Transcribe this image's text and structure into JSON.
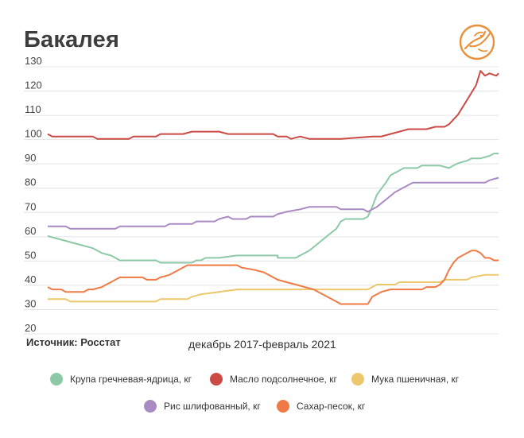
{
  "title": "Бакалея",
  "source": "Источник: Росстат",
  "period": "декабрь 2017-февраль 2021",
  "logo_icon": "bird-logo-icon",
  "chart_data": {
    "type": "line",
    "title": "Бакалея",
    "xlabel": "декабрь 2017-февраль 2021",
    "ylabel": "",
    "ylim": [
      20,
      130
    ],
    "yticks": [
      20,
      30,
      40,
      50,
      60,
      70,
      80,
      90,
      100,
      110,
      120,
      130
    ],
    "grid": true,
    "legend_position": "bottom",
    "x_start": "2017-12",
    "x_end": "2021-02",
    "n_points": 180,
    "series": [
      {
        "name": "Крупа гречневая-ядрица, кг",
        "color": "#8dc9a6",
        "values": [
          58,
          57,
          56,
          55,
          54,
          53,
          52,
          51,
          50,
          49,
          48,
          48,
          48,
          47,
          47,
          47,
          48,
          48,
          49,
          49,
          49,
          50,
          50,
          50,
          50,
          49,
          49,
          49,
          50,
          52,
          55,
          58,
          61,
          64,
          65,
          65,
          66,
          70,
          75,
          80,
          83,
          85,
          86,
          86,
          87,
          87,
          87,
          86,
          87,
          88,
          89,
          90,
          90,
          91,
          92,
          92
        ],
        "at": [
          0,
          0.02,
          0.04,
          0.06,
          0.08,
          0.1,
          0.11,
          0.12,
          0.14,
          0.15,
          0.16,
          0.2,
          0.24,
          0.25,
          0.3,
          0.32,
          0.33,
          0.34,
          0.35,
          0.37,
          0.38,
          0.42,
          0.46,
          0.5,
          0.51,
          0.51,
          0.53,
          0.55,
          0.56,
          0.58,
          0.6,
          0.62,
          0.64,
          0.65,
          0.66,
          0.7,
          0.71,
          0.72,
          0.73,
          0.75,
          0.76,
          0.78,
          0.79,
          0.82,
          0.83,
          0.86,
          0.87,
          0.89,
          0.9,
          0.91,
          0.93,
          0.94,
          0.96,
          0.98,
          0.99,
          1
        ]
      },
      {
        "name": "Масло подсолнечное, кг",
        "color": "#cc4a44",
        "values": [
          100,
          99,
          99,
          98,
          98,
          99,
          99,
          100,
          100,
          101,
          101,
          100,
          100,
          100,
          99,
          99,
          98,
          99,
          98,
          98,
          98,
          99,
          99,
          100,
          101,
          102,
          102,
          102,
          103,
          103,
          104,
          108,
          114,
          120,
          126,
          124,
          125,
          124,
          125
        ],
        "at": [
          0,
          0.01,
          0.1,
          0.11,
          0.18,
          0.19,
          0.24,
          0.25,
          0.3,
          0.32,
          0.38,
          0.4,
          0.46,
          0.5,
          0.51,
          0.53,
          0.54,
          0.56,
          0.58,
          0.6,
          0.65,
          0.72,
          0.74,
          0.76,
          0.78,
          0.8,
          0.82,
          0.84,
          0.86,
          0.88,
          0.89,
          0.91,
          0.93,
          0.95,
          0.96,
          0.97,
          0.98,
          0.995,
          1
        ]
      },
      {
        "name": "Мука пшеничная, кг",
        "color": "#ecc76b",
        "values": [
          32,
          32,
          31,
          31,
          31,
          32,
          32,
          33,
          34,
          35,
          36,
          36,
          36,
          36,
          36,
          37,
          38,
          38,
          39,
          39,
          39,
          40,
          40,
          41,
          42,
          42
        ],
        "at": [
          0,
          0.04,
          0.05,
          0.14,
          0.24,
          0.25,
          0.31,
          0.32,
          0.34,
          0.38,
          0.42,
          0.5,
          0.6,
          0.7,
          0.71,
          0.72,
          0.73,
          0.77,
          0.78,
          0.8,
          0.87,
          0.88,
          0.93,
          0.94,
          0.97,
          1
        ]
      },
      {
        "name": "Рис шлифованный, кг",
        "color": "#a98ac2",
        "values": [
          62,
          62,
          61,
          61,
          62,
          62,
          63,
          63,
          64,
          64,
          65,
          66,
          65,
          65,
          66,
          66,
          67,
          68,
          69,
          70,
          70,
          69,
          69,
          68,
          70,
          73,
          76,
          78,
          79,
          80,
          80,
          80,
          80,
          81,
          82
        ],
        "at": [
          0,
          0.04,
          0.05,
          0.15,
          0.16,
          0.26,
          0.27,
          0.32,
          0.33,
          0.37,
          0.38,
          0.4,
          0.41,
          0.44,
          0.45,
          0.5,
          0.51,
          0.53,
          0.56,
          0.58,
          0.64,
          0.65,
          0.7,
          0.71,
          0.73,
          0.75,
          0.77,
          0.79,
          0.8,
          0.81,
          0.85,
          0.9,
          0.97,
          0.98,
          1
        ]
      },
      {
        "name": "Сахар-песок, кг",
        "color": "#f07a45",
        "values": [
          37,
          36,
          36,
          35,
          35,
          36,
          36,
          37,
          38,
          39,
          40,
          41,
          41,
          40,
          40,
          41,
          42,
          44,
          45,
          46,
          46,
          46,
          45,
          44,
          43,
          42,
          41,
          40,
          39,
          38,
          37,
          36,
          35,
          33,
          32,
          31,
          30,
          30,
          30,
          33,
          34,
          35,
          36,
          36,
          36,
          37,
          37,
          38,
          40,
          44,
          47,
          49,
          50,
          51,
          52,
          52,
          51,
          49,
          49,
          48,
          48
        ],
        "at": [
          0,
          0.01,
          0.03,
          0.04,
          0.08,
          0.09,
          0.1,
          0.12,
          0.13,
          0.14,
          0.15,
          0.16,
          0.21,
          0.22,
          0.24,
          0.25,
          0.27,
          0.29,
          0.3,
          0.31,
          0.36,
          0.42,
          0.43,
          0.46,
          0.48,
          0.49,
          0.5,
          0.51,
          0.53,
          0.55,
          0.57,
          0.59,
          0.6,
          0.62,
          0.63,
          0.64,
          0.65,
          0.68,
          0.71,
          0.72,
          0.73,
          0.74,
          0.76,
          0.8,
          0.83,
          0.84,
          0.86,
          0.87,
          0.88,
          0.89,
          0.9,
          0.91,
          0.92,
          0.93,
          0.94,
          0.95,
          0.96,
          0.97,
          0.98,
          0.99,
          1
        ]
      }
    ]
  }
}
